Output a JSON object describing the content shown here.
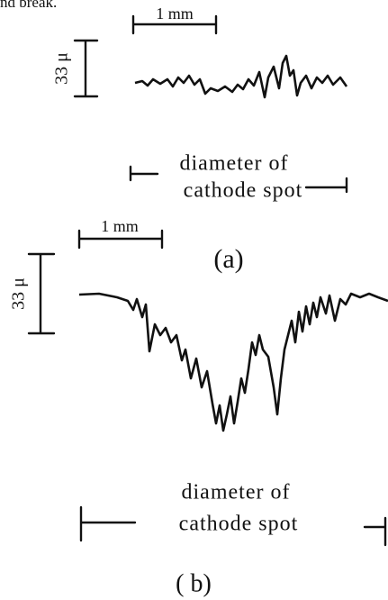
{
  "caption_fragment": "nd break.",
  "panel_a": {
    "scale_x": "1 mm",
    "scale_y": "33 μ",
    "diameter_line1": "diameter of",
    "diameter_line2": "cathode spot",
    "label": "(a)"
  },
  "panel_b": {
    "scale_x": "1 mm",
    "scale_y": "33 μ",
    "diameter_line1": "diameter of",
    "diameter_line2": "cathode spot",
    "label": "( b)"
  }
}
